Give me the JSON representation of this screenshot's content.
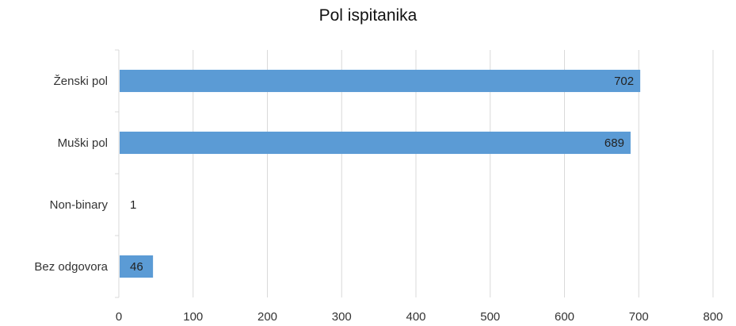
{
  "chart_data": {
    "type": "bar",
    "orientation": "horizontal",
    "title": "Pol ispitanika",
    "xlabel": "",
    "ylabel": "",
    "categories": [
      "Ženski pol",
      "Muški pol",
      "Non-binary",
      "Bez odgovora"
    ],
    "values": [
      702,
      689,
      1,
      46
    ],
    "xlim": [
      0,
      800
    ],
    "xticks": [
      0,
      100,
      200,
      300,
      400,
      500,
      600,
      700,
      800
    ],
    "grid": "vertical",
    "legend": "none",
    "bar_color": "#5b9bd5",
    "data_labels": true
  }
}
